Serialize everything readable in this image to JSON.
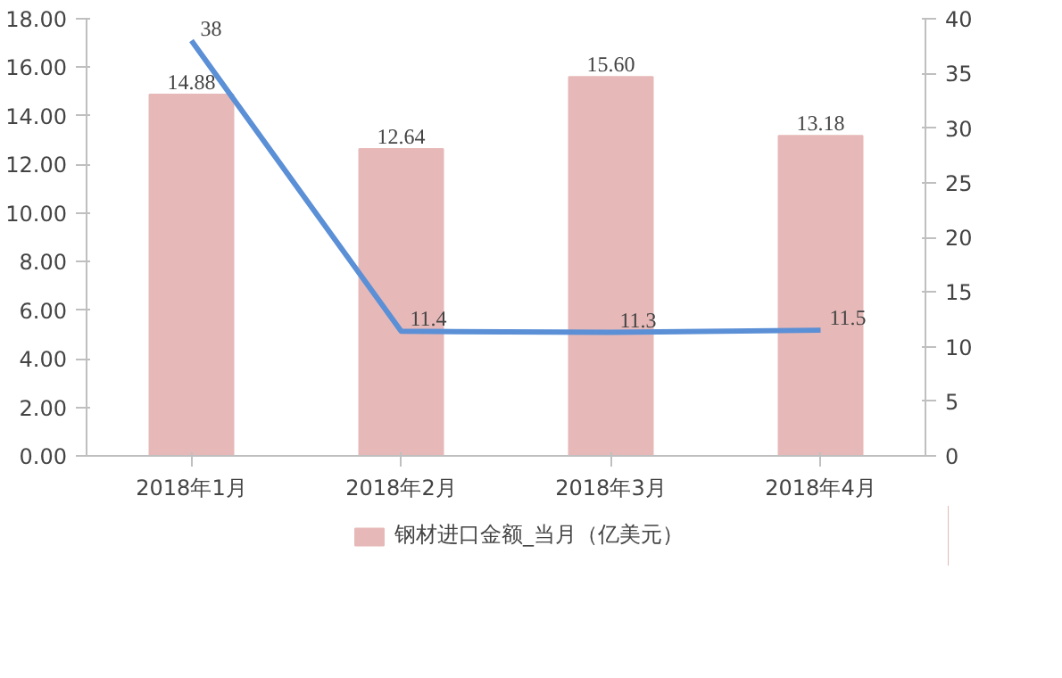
{
  "chart_data": {
    "type": "bar",
    "categories": [
      "2018年1月",
      "2018年2月",
      "2018年3月",
      "2018年4月"
    ],
    "series": [
      {
        "name": "钢材进口金额_当月（亿美元）",
        "color": "#e6b9b8",
        "values": [
          14.88,
          12.64,
          15.6,
          13.18
        ],
        "value_labels": [
          "14.88",
          "12.64",
          "15.60",
          "13.18"
        ]
      },
      {
        "type": "line",
        "axis": "y2",
        "color": "#5b8fd6",
        "values": [
          38,
          11.4,
          11.3,
          11.5
        ],
        "value_labels": [
          "38",
          "11.4",
          "11.3",
          "11.5"
        ]
      }
    ],
    "ylim": [
      0,
      18
    ],
    "yticks": [
      {
        "value": 0,
        "label": "0.00"
      },
      {
        "value": 2,
        "label": "2.00"
      },
      {
        "value": 4,
        "label": "4.00"
      },
      {
        "value": 6,
        "label": "6.00"
      },
      {
        "value": 8,
        "label": "8.00"
      },
      {
        "value": 10,
        "label": "10.00"
      },
      {
        "value": 12,
        "label": "12.00"
      },
      {
        "value": 14,
        "label": "14.00"
      },
      {
        "value": 16,
        "label": "16.00"
      },
      {
        "value": 18,
        "label": "18.00"
      }
    ],
    "y2lim": [
      0,
      40
    ],
    "y2ticks": [
      0,
      5,
      10,
      15,
      20,
      25,
      30,
      35,
      40
    ],
    "grid": false,
    "legend": "bottom",
    "marker": "none",
    "line_style": "solid"
  }
}
